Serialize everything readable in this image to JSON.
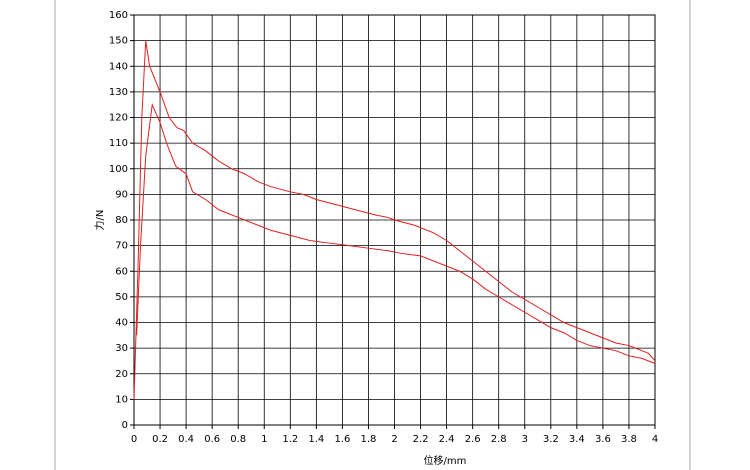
{
  "chart_data": {
    "type": "line",
    "x_label": "位移/mm",
    "y_label": "力/N",
    "xlim": [
      0,
      4
    ],
    "ylim": [
      0,
      160
    ],
    "xticks": [
      0,
      0.2,
      0.4,
      0.6,
      0.8,
      1,
      1.2,
      1.4,
      1.6,
      1.8,
      2,
      2.2,
      2.4,
      2.6,
      2.8,
      3,
      3.2,
      3.4,
      3.6,
      3.8,
      4
    ],
    "yticks": [
      0,
      10,
      20,
      30,
      40,
      50,
      60,
      70,
      80,
      90,
      100,
      110,
      120,
      130,
      140,
      150,
      160
    ],
    "grid": true,
    "series": [
      {
        "color": "#e02020",
        "x": [
          0,
          0.03,
          0.06,
          0.09,
          0.12,
          0.2,
          0.27,
          0.33,
          0.38,
          0.45,
          0.55,
          0.65,
          0.75,
          0.85,
          0.95,
          1.05,
          1.2,
          1.3,
          1.4,
          1.55,
          1.7,
          1.85,
          1.95,
          2.0,
          2.15,
          2.3,
          2.4,
          2.5,
          2.6,
          2.7,
          2.8,
          2.9,
          3.0,
          3.1,
          3.2,
          3.3,
          3.4,
          3.5,
          3.6,
          3.7,
          3.8,
          3.9,
          3.95,
          4.0
        ],
        "values": [
          10,
          60,
          120,
          150,
          140,
          130,
          120,
          116,
          115,
          110,
          107,
          103,
          100,
          98,
          95,
          93,
          91,
          90,
          88,
          86,
          84,
          82,
          81,
          80,
          78,
          75,
          72,
          68,
          64,
          60,
          56,
          52,
          49,
          46,
          43,
          40,
          38,
          36,
          34,
          32,
          31,
          29,
          28,
          25
        ]
      },
      {
        "color": "#e02020",
        "x": [
          0.02,
          0.05,
          0.09,
          0.14,
          0.2,
          0.25,
          0.32,
          0.4,
          0.45,
          0.55,
          0.65,
          0.8,
          0.95,
          1.05,
          1.2,
          1.35,
          1.5,
          1.65,
          1.8,
          1.95,
          2.05,
          2.2,
          2.3,
          2.4,
          2.5,
          2.6,
          2.7,
          2.8,
          2.9,
          3.0,
          3.1,
          3.2,
          3.3,
          3.4,
          3.5,
          3.6,
          3.7,
          3.8,
          3.9,
          4.0
        ],
        "values": [
          35,
          70,
          105,
          125,
          118,
          110,
          101,
          98,
          91,
          88,
          84,
          81,
          78,
          76,
          74,
          72,
          71,
          70,
          69,
          68,
          67,
          66,
          64,
          62,
          60,
          57,
          53,
          50,
          47,
          44,
          41,
          38,
          36,
          33,
          31,
          30,
          29,
          27,
          26,
          24
        ]
      }
    ]
  }
}
